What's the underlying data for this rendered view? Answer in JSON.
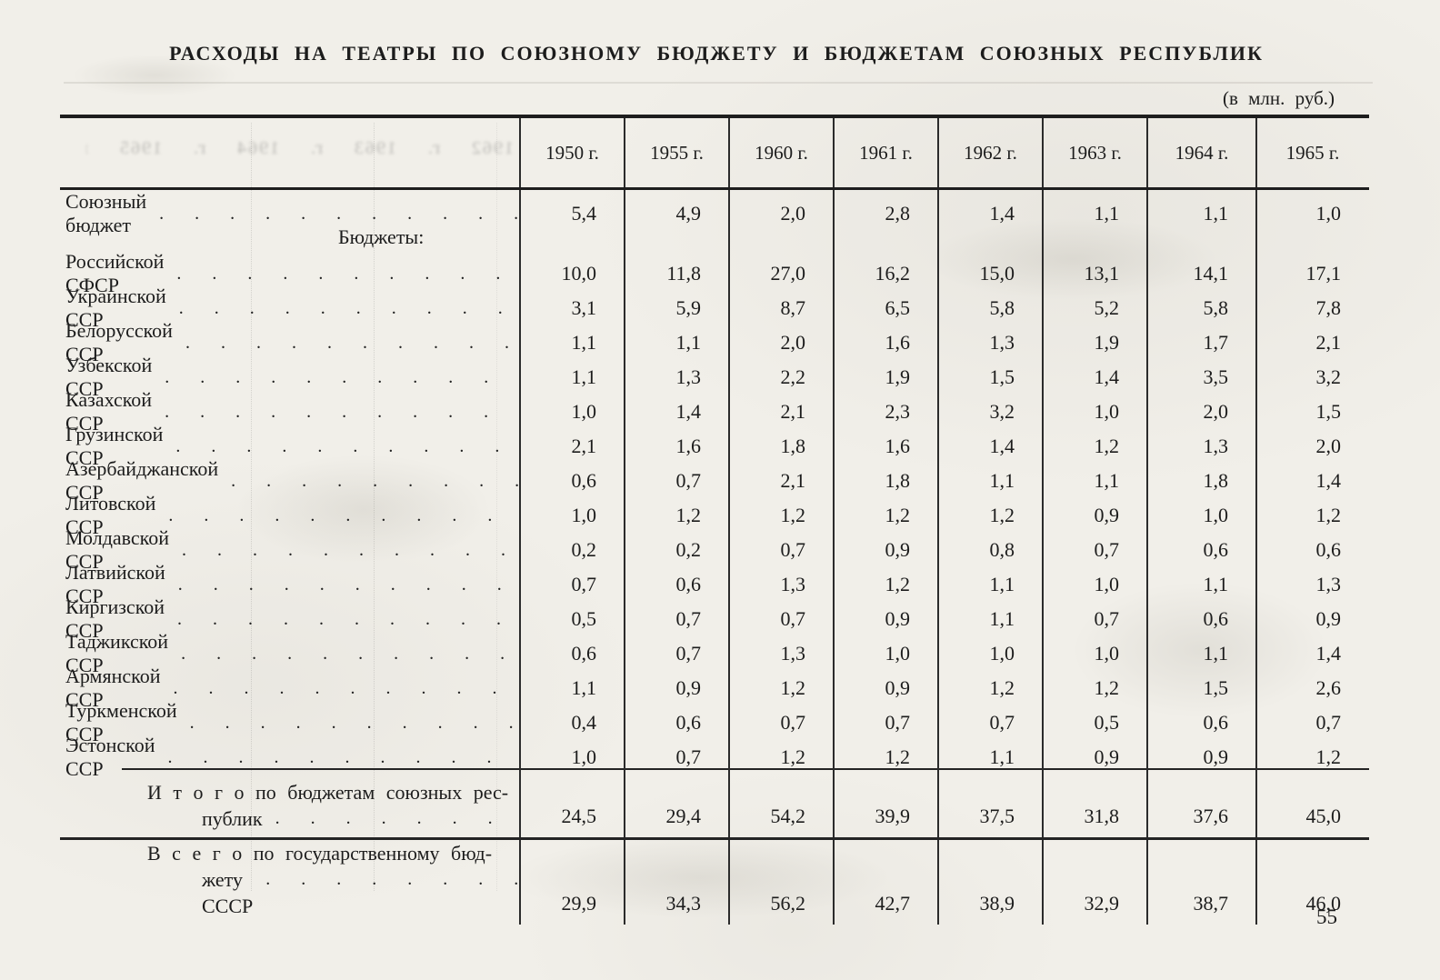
{
  "page": {
    "title": "РАСХОДЫ НА ТЕАТРЫ ПО СОЮЗНОМУ БЮДЖЕТУ И БЮДЖЕТАМ СОЮЗНЫХ РЕСПУБЛИК",
    "unit_note": "(в млн. руб.)",
    "page_number": "55",
    "ghost_years": "1962 г. 1963 г. 1964 г. 1965 г."
  },
  "table": {
    "dot_leader": ". . . . . . . . . . . . . . . . . . . . . . . .",
    "columns": [
      "1950 г.",
      "1955 г.",
      "1960 г.",
      "1961 г.",
      "1962 г.",
      "1963 г.",
      "1964 г.",
      "1965 г."
    ],
    "rows": [
      {
        "label": "Союзный бюджет",
        "values": [
          "5,4",
          "4,9",
          "2,0",
          "2,8",
          "1,4",
          "1,1",
          "1,1",
          "1,0"
        ]
      },
      {
        "label": "Бюджеты:",
        "type": "subheader"
      },
      {
        "label": "Российской СФСР",
        "values": [
          "10,0",
          "11,8",
          "27,0",
          "16,2",
          "15,0",
          "13,1",
          "14,1",
          "17,1"
        ]
      },
      {
        "label": "Украинской ССР",
        "values": [
          "3,1",
          "5,9",
          "8,7",
          "6,5",
          "5,8",
          "5,2",
          "5,8",
          "7,8"
        ]
      },
      {
        "label": "Белорусской ССР",
        "values": [
          "1,1",
          "1,1",
          "2,0",
          "1,6",
          "1,3",
          "1,9",
          "1,7",
          "2,1"
        ]
      },
      {
        "label": "Узбекской ССР",
        "values": [
          "1,1",
          "1,3",
          "2,2",
          "1,9",
          "1,5",
          "1,4",
          "3,5",
          "3,2"
        ]
      },
      {
        "label": "Казахской ССР",
        "values": [
          "1,0",
          "1,4",
          "2,1",
          "2,3",
          "3,2",
          "1,0",
          "2,0",
          "1,5"
        ]
      },
      {
        "label": "Грузинской ССР",
        "values": [
          "2,1",
          "1,6",
          "1,8",
          "1,6",
          "1,4",
          "1,2",
          "1,3",
          "2,0"
        ]
      },
      {
        "label": "Азербайджанской ССР",
        "values": [
          "0,6",
          "0,7",
          "2,1",
          "1,8",
          "1,1",
          "1,1",
          "1,8",
          "1,4"
        ]
      },
      {
        "label": "Литовской ССР",
        "values": [
          "1,0",
          "1,2",
          "1,2",
          "1,2",
          "1,2",
          "0,9",
          "1,0",
          "1,2"
        ]
      },
      {
        "label": "Молдавской ССР",
        "values": [
          "0,2",
          "0,2",
          "0,7",
          "0,9",
          "0,8",
          "0,7",
          "0,6",
          "0,6"
        ]
      },
      {
        "label": "Латвийской ССР",
        "values": [
          "0,7",
          "0,6",
          "1,3",
          "1,2",
          "1,1",
          "1,0",
          "1,1",
          "1,3"
        ]
      },
      {
        "label": "Киргизской ССР",
        "values": [
          "0,5",
          "0,7",
          "0,7",
          "0,9",
          "1,1",
          "0,7",
          "0,6",
          "0,9"
        ]
      },
      {
        "label": "Таджикской ССР",
        "values": [
          "0,6",
          "0,7",
          "1,3",
          "1,0",
          "1,0",
          "1,0",
          "1,1",
          "1,4"
        ]
      },
      {
        "label": "Армянской ССР",
        "values": [
          "1,1",
          "0,9",
          "1,2",
          "0,9",
          "1,2",
          "1,2",
          "1,5",
          "2,6"
        ]
      },
      {
        "label": "Туркменской ССР",
        "values": [
          "0,4",
          "0,6",
          "0,7",
          "0,7",
          "0,7",
          "0,5",
          "0,6",
          "0,7"
        ]
      },
      {
        "label": "Эстонской ССР",
        "values": [
          "1,0",
          "0,7",
          "1,2",
          "1,2",
          "1,1",
          "0,9",
          "0,9",
          "1,2"
        ]
      }
    ],
    "totals": [
      {
        "label_line1": "И т о г о  по  бюджетам  союзных  рес-",
        "label_line2": "публик",
        "values": [
          "24,5",
          "29,4",
          "54,2",
          "39,9",
          "37,5",
          "31,8",
          "37,6",
          "45,0"
        ]
      },
      {
        "label_line1": "В с е г о  по  государственному  бюд-",
        "label_line2": "жету СССР",
        "values": [
          "29,9",
          "34,3",
          "56,2",
          "42,7",
          "38,9",
          "32,9",
          "38,7",
          "46,0"
        ]
      }
    ]
  },
  "chart_data": {
    "type": "table",
    "title": "РАСХОДЫ НА ТЕАТРЫ ПО СОЮЗНОМУ БЮДЖЕТУ И БЮДЖЕТАМ СОЮЗНЫХ РЕСПУБЛИК",
    "unit": "млн. руб.",
    "categories": [
      1950,
      1955,
      1960,
      1961,
      1962,
      1963,
      1964,
      1965
    ],
    "series": [
      {
        "name": "Союзный бюджет",
        "values": [
          5.4,
          4.9,
          2.0,
          2.8,
          1.4,
          1.1,
          1.1,
          1.0
        ]
      },
      {
        "name": "Российской СФСР",
        "values": [
          10.0,
          11.8,
          27.0,
          16.2,
          15.0,
          13.1,
          14.1,
          17.1
        ]
      },
      {
        "name": "Украинской ССР",
        "values": [
          3.1,
          5.9,
          8.7,
          6.5,
          5.8,
          5.2,
          5.8,
          7.8
        ]
      },
      {
        "name": "Белорусской ССР",
        "values": [
          1.1,
          1.1,
          2.0,
          1.6,
          1.3,
          1.9,
          1.7,
          2.1
        ]
      },
      {
        "name": "Узбекской ССР",
        "values": [
          1.1,
          1.3,
          2.2,
          1.9,
          1.5,
          1.4,
          3.5,
          3.2
        ]
      },
      {
        "name": "Казахской ССР",
        "values": [
          1.0,
          1.4,
          2.1,
          2.3,
          3.2,
          1.0,
          2.0,
          1.5
        ]
      },
      {
        "name": "Грузинской ССР",
        "values": [
          2.1,
          1.6,
          1.8,
          1.6,
          1.4,
          1.2,
          1.3,
          2.0
        ]
      },
      {
        "name": "Азербайджанской ССР",
        "values": [
          0.6,
          0.7,
          2.1,
          1.8,
          1.1,
          1.1,
          1.8,
          1.4
        ]
      },
      {
        "name": "Литовской ССР",
        "values": [
          1.0,
          1.2,
          1.2,
          1.2,
          1.2,
          0.9,
          1.0,
          1.2
        ]
      },
      {
        "name": "Молдавской ССР",
        "values": [
          0.2,
          0.2,
          0.7,
          0.9,
          0.8,
          0.7,
          0.6,
          0.6
        ]
      },
      {
        "name": "Латвийской ССР",
        "values": [
          0.7,
          0.6,
          1.3,
          1.2,
          1.1,
          1.0,
          1.1,
          1.3
        ]
      },
      {
        "name": "Киргизской ССР",
        "values": [
          0.5,
          0.7,
          0.7,
          0.9,
          1.1,
          0.7,
          0.6,
          0.9
        ]
      },
      {
        "name": "Таджикской ССР",
        "values": [
          0.6,
          0.7,
          1.3,
          1.0,
          1.0,
          1.0,
          1.1,
          1.4
        ]
      },
      {
        "name": "Армянской ССР",
        "values": [
          1.1,
          0.9,
          1.2,
          0.9,
          1.2,
          1.2,
          1.5,
          2.6
        ]
      },
      {
        "name": "Туркменской ССР",
        "values": [
          0.4,
          0.6,
          0.7,
          0.7,
          0.7,
          0.5,
          0.6,
          0.7
        ]
      },
      {
        "name": "Эстонской ССР",
        "values": [
          1.0,
          0.7,
          1.2,
          1.2,
          1.1,
          0.9,
          0.9,
          1.2
        ]
      },
      {
        "name": "Итого по бюджетам союзных республик",
        "values": [
          24.5,
          29.4,
          54.2,
          39.9,
          37.5,
          31.8,
          37.6,
          45.0
        ]
      },
      {
        "name": "Всего по государственному бюджету СССР",
        "values": [
          29.9,
          34.3,
          56.2,
          42.7,
          38.9,
          32.9,
          38.7,
          46.0
        ]
      }
    ]
  }
}
